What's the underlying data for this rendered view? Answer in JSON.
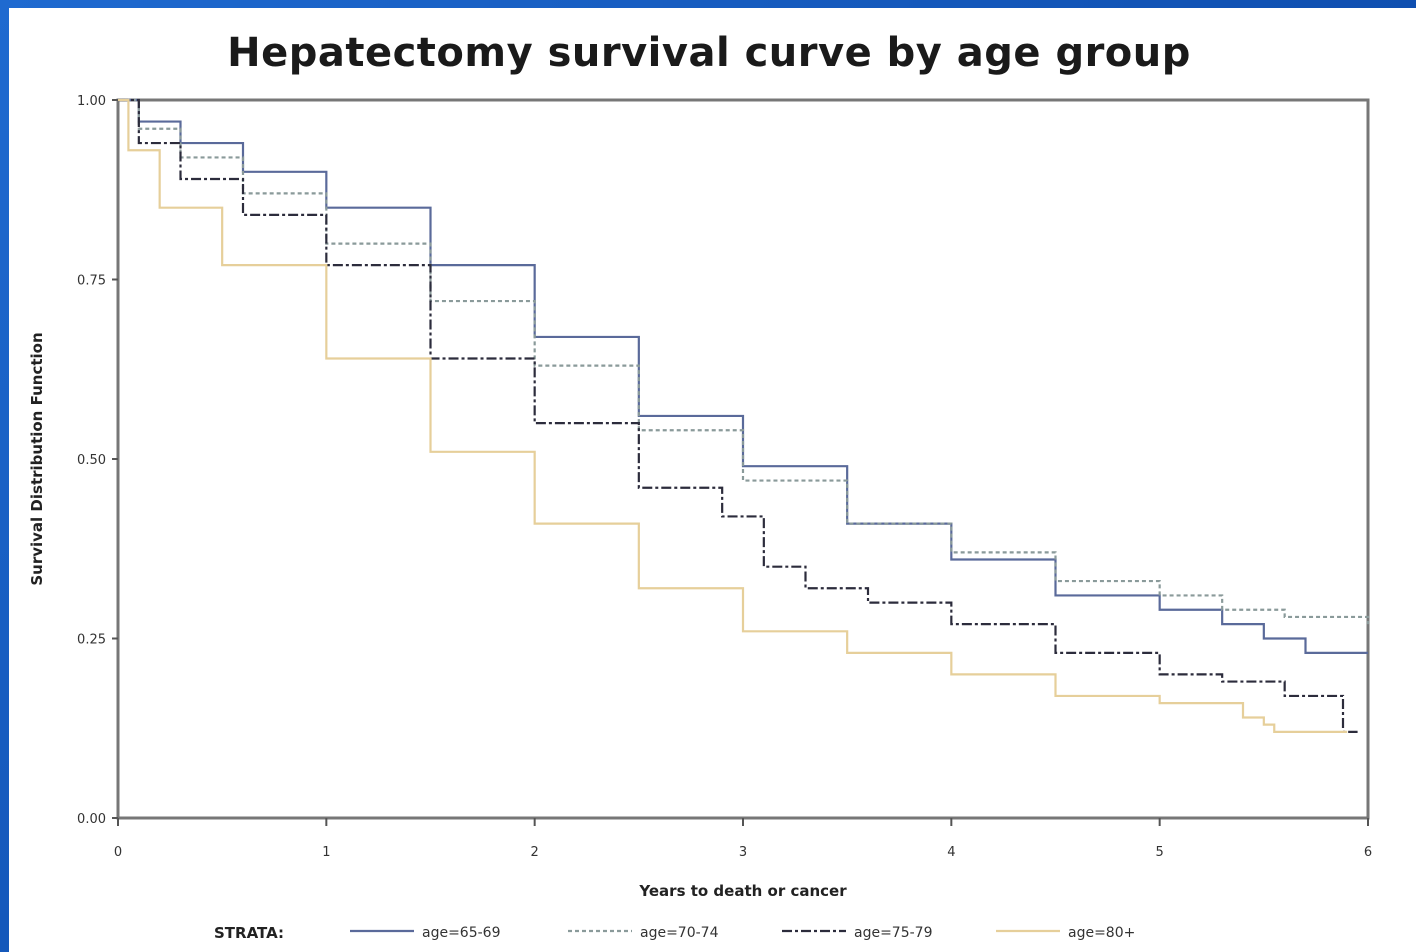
{
  "chart_data": {
    "type": "line",
    "title": "Hepatectomy survival curve by age group",
    "xlabel": "Years to death or cancer",
    "ylabel": "Survival Distribution Function",
    "xlim": [
      0,
      6
    ],
    "ylim": [
      0,
      1
    ],
    "x_ticks": [
      "0",
      "1",
      "2",
      "3",
      "4",
      "5",
      "6"
    ],
    "y_ticks": [
      "0.00",
      "0.25",
      "0.50",
      "0.75",
      "1.00"
    ],
    "legend_title": "STRATA:",
    "legend_position": "bottom",
    "series": [
      {
        "name": "age=65-69",
        "color": "#5a6a9a",
        "dash": "none",
        "points": [
          [
            0,
            1.0
          ],
          [
            0.1,
            0.97
          ],
          [
            0.3,
            0.94
          ],
          [
            0.6,
            0.9
          ],
          [
            1.0,
            0.85
          ],
          [
            1.5,
            0.77
          ],
          [
            2.0,
            0.67
          ],
          [
            2.5,
            0.56
          ],
          [
            3.0,
            0.49
          ],
          [
            3.5,
            0.41
          ],
          [
            4.0,
            0.36
          ],
          [
            4.5,
            0.31
          ],
          [
            5.0,
            0.29
          ],
          [
            5.3,
            0.27
          ],
          [
            5.5,
            0.25
          ],
          [
            5.7,
            0.23
          ],
          [
            6.0,
            0.23
          ]
        ]
      },
      {
        "name": "age=70-74",
        "color": "#8a9a9a",
        "dash": "4,3",
        "points": [
          [
            0,
            1.0
          ],
          [
            0.1,
            0.96
          ],
          [
            0.3,
            0.92
          ],
          [
            0.6,
            0.87
          ],
          [
            1.0,
            0.8
          ],
          [
            1.5,
            0.72
          ],
          [
            2.0,
            0.63
          ],
          [
            2.5,
            0.54
          ],
          [
            3.0,
            0.47
          ],
          [
            3.5,
            0.41
          ],
          [
            4.0,
            0.37
          ],
          [
            4.5,
            0.33
          ],
          [
            5.0,
            0.31
          ],
          [
            5.3,
            0.29
          ],
          [
            5.6,
            0.28
          ],
          [
            6.0,
            0.27
          ]
        ]
      },
      {
        "name": "age=75-79",
        "color": "#2c2c3c",
        "dash": "10,3,3,3",
        "points": [
          [
            0,
            1.0
          ],
          [
            0.1,
            0.94
          ],
          [
            0.3,
            0.89
          ],
          [
            0.6,
            0.84
          ],
          [
            1.0,
            0.77
          ],
          [
            1.5,
            0.64
          ],
          [
            2.0,
            0.55
          ],
          [
            2.5,
            0.46
          ],
          [
            2.9,
            0.42
          ],
          [
            3.1,
            0.35
          ],
          [
            3.3,
            0.32
          ],
          [
            3.6,
            0.3
          ],
          [
            4.0,
            0.27
          ],
          [
            4.5,
            0.23
          ],
          [
            5.0,
            0.2
          ],
          [
            5.3,
            0.19
          ],
          [
            5.5,
            0.19
          ],
          [
            5.6,
            0.17
          ],
          [
            5.75,
            0.17
          ],
          [
            5.85,
            0.17
          ],
          [
            5.88,
            0.12
          ],
          [
            5.95,
            0.12
          ]
        ]
      },
      {
        "name": "age=80+",
        "color": "#e6cf9a",
        "dash": "none",
        "points": [
          [
            0,
            1.0
          ],
          [
            0.05,
            0.93
          ],
          [
            0.2,
            0.85
          ],
          [
            0.5,
            0.77
          ],
          [
            1.0,
            0.64
          ],
          [
            1.5,
            0.51
          ],
          [
            2.0,
            0.41
          ],
          [
            2.5,
            0.32
          ],
          [
            3.0,
            0.26
          ],
          [
            3.5,
            0.23
          ],
          [
            4.0,
            0.2
          ],
          [
            4.5,
            0.17
          ],
          [
            5.0,
            0.16
          ],
          [
            5.4,
            0.14
          ],
          [
            5.5,
            0.13
          ],
          [
            5.55,
            0.12
          ],
          [
            5.9,
            0.12
          ]
        ]
      }
    ]
  }
}
